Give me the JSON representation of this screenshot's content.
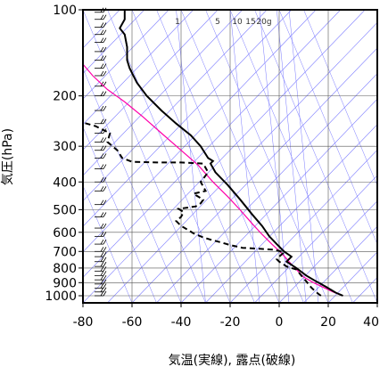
{
  "chart_data": {
    "type": "line",
    "title": "",
    "xlabel": "気温(実線), 露点(破線)",
    "ylabel": "気圧(hPa)",
    "xlim": [
      -80,
      40
    ],
    "ylim": [
      1050,
      100
    ],
    "y_scale": "log",
    "x_ticks": [
      "-80",
      "-60",
      "-40",
      "-20",
      "0",
      "20",
      "40"
    ],
    "y_ticks": [
      {
        "p": 100,
        "label": "100"
      },
      {
        "p": 200,
        "label": "200"
      },
      {
        "p": 300,
        "label": "300"
      },
      {
        "p": 400,
        "label": "400"
      },
      {
        "p": 500,
        "label": "500"
      },
      {
        "p": 600,
        "label": "600"
      },
      {
        "p": 700,
        "label": "700"
      },
      {
        "p": 800,
        "label": "800"
      },
      {
        "p": 900,
        "label": "900"
      },
      {
        "p": 1000,
        "label": "1000"
      }
    ],
    "mixing_ratio_labels": [
      "1",
      "5",
      "10",
      "15",
      "20g"
    ],
    "grid": true,
    "series": [
      {
        "role": "temperature",
        "style": "solid",
        "color": "#000000",
        "points": [
          [
            26,
            1000
          ],
          [
            23,
            975
          ],
          [
            19,
            930
          ],
          [
            15,
            890
          ],
          [
            11,
            850
          ],
          [
            7,
            800
          ],
          [
            3,
            760
          ],
          [
            5,
            730
          ],
          [
            2,
            700
          ],
          [
            -1,
            660
          ],
          [
            -4,
            620
          ],
          [
            -7,
            570
          ],
          [
            -11,
            520
          ],
          [
            -16,
            460
          ],
          [
            -21,
            410
          ],
          [
            -26,
            370
          ],
          [
            -28,
            345
          ],
          [
            -27,
            338
          ],
          [
            -29,
            330
          ],
          [
            -32,
            300
          ],
          [
            -36,
            275
          ],
          [
            -42,
            250
          ],
          [
            -48,
            225
          ],
          [
            -54,
            200
          ],
          [
            -58,
            180
          ],
          [
            -61,
            160
          ],
          [
            -62,
            150
          ],
          [
            -62,
            135
          ],
          [
            -63,
            122
          ],
          [
            -65,
            116
          ],
          [
            -63,
            108
          ],
          [
            -63,
            100
          ]
        ]
      },
      {
        "role": "dewpoint",
        "style": "dashed",
        "color": "#000000",
        "points": [
          [
            17,
            1000
          ],
          [
            15,
            970
          ],
          [
            13,
            935
          ],
          [
            11,
            890
          ],
          [
            9,
            850
          ],
          [
            7,
            810
          ],
          [
            3,
            790
          ],
          [
            0,
            760
          ],
          [
            -1,
            745
          ],
          [
            0,
            730
          ],
          [
            2,
            705
          ],
          [
            -2,
            690
          ],
          [
            -8,
            685
          ],
          [
            -15,
            680
          ],
          [
            -20,
            665
          ],
          [
            -24,
            650
          ],
          [
            -27,
            640
          ],
          [
            -31,
            625
          ],
          [
            -35,
            605
          ],
          [
            -37,
            590
          ],
          [
            -40,
            570
          ],
          [
            -42,
            548
          ],
          [
            -40,
            530
          ],
          [
            -39,
            510
          ],
          [
            -41,
            497
          ],
          [
            -34,
            487
          ],
          [
            -32,
            475
          ],
          [
            -31,
            462
          ],
          [
            -33,
            450
          ],
          [
            -35,
            440
          ],
          [
            -30,
            430
          ],
          [
            -32,
            400
          ],
          [
            -29,
            370
          ],
          [
            -31,
            345
          ],
          [
            -40,
            342
          ],
          [
            -50,
            342
          ],
          [
            -60,
            340
          ],
          [
            -64,
            330
          ],
          [
            -66,
            310
          ],
          [
            -70,
            290
          ],
          [
            -69,
            270
          ],
          [
            -75,
            255
          ],
          [
            -80,
            248
          ]
        ]
      },
      {
        "role": "parcel",
        "style": "solid",
        "color": "#ff00aa",
        "points": [
          [
            26,
            1000
          ],
          [
            22,
            970
          ],
          [
            18,
            935
          ],
          [
            14,
            900
          ],
          [
            10,
            860
          ],
          [
            7,
            810
          ],
          [
            4,
            760
          ],
          [
            1,
            710
          ],
          [
            -3,
            660
          ],
          [
            -7,
            610
          ],
          [
            -11,
            560
          ],
          [
            -16,
            500
          ],
          [
            -21,
            450
          ],
          [
            -27,
            400
          ],
          [
            -33,
            350
          ],
          [
            -40,
            310
          ],
          [
            -48,
            270
          ],
          [
            -56,
            235
          ],
          [
            -63,
            210
          ],
          [
            -70,
            190
          ],
          [
            -76,
            170
          ],
          [
            -80,
            155
          ]
        ]
      }
    ]
  },
  "colors": {
    "background": "#ffffff",
    "grid_lines": "#7a7aff",
    "frame": "#000000",
    "temperature": "#000000",
    "parcel": "#ff00aa"
  }
}
